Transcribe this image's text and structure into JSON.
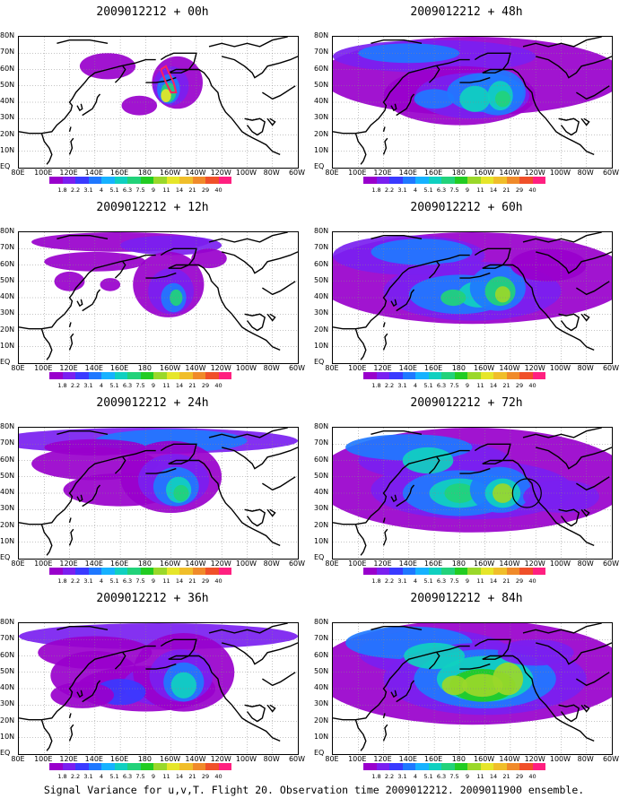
{
  "panels": [
    {
      "title": "2009012212 + 00h",
      "level": 0,
      "col": 0,
      "row": 0
    },
    {
      "title": "2009012212 + 48h",
      "level": 4,
      "col": 1,
      "row": 0
    },
    {
      "title": "2009012212 + 12h",
      "level": 1,
      "col": 0,
      "row": 1
    },
    {
      "title": "2009012212 + 60h",
      "level": 5,
      "col": 1,
      "row": 1
    },
    {
      "title": "2009012212 + 24h",
      "level": 2,
      "col": 0,
      "row": 2
    },
    {
      "title": "2009012212 + 72h",
      "level": 6,
      "col": 1,
      "row": 2
    },
    {
      "title": "2009012212 + 36h",
      "level": 3,
      "col": 0,
      "row": 3
    },
    {
      "title": "2009012212 + 84h",
      "level": 7,
      "col": 1,
      "row": 3
    }
  ],
  "lat_labels": [
    "80N",
    "70N",
    "60N",
    "50N",
    "40N",
    "30N",
    "20N",
    "10N",
    "EQ"
  ],
  "lon_labels": [
    "80E",
    "100E",
    "120E",
    "140E",
    "160E",
    "180",
    "160W",
    "140W",
    "120W",
    "100W",
    "80W",
    "60W"
  ],
  "colorbar": {
    "labels": [
      "1.8",
      "2.2",
      "3.1",
      "4",
      "5.1",
      "6.3",
      "7.5",
      "9",
      "11",
      "14",
      "21",
      "29",
      "40"
    ],
    "colors": [
      "#9900cc",
      "#7a1ff0",
      "#3a3aff",
      "#1f78ff",
      "#16b2ff",
      "#10d0c0",
      "#22d27a",
      "#22cc22",
      "#9ad82a",
      "#e6e62a",
      "#f0be2a",
      "#f08a2a",
      "#f0502a",
      "#ff2080"
    ]
  },
  "footer": "Signal Variance for u,v,T. Flight 20. Observation time 2009012212. 2009011900 ensemble."
}
